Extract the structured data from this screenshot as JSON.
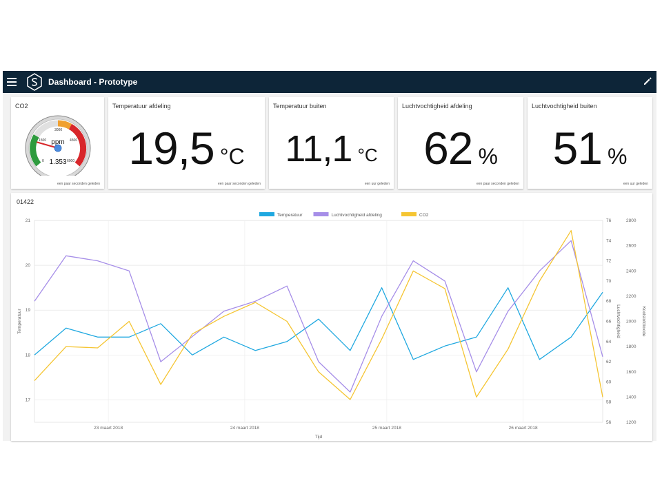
{
  "appbar": {
    "title": "Dashboard - Prototype",
    "menu_icon": "hamburger-menu-icon",
    "edit_icon": "pencil-icon",
    "logo": "s-hexagon-logo"
  },
  "cards": [
    {
      "title": "CO2",
      "gauge": {
        "unit": "ppm",
        "value_label": "1.353",
        "value": 1353,
        "min": 0,
        "max": 6000,
        "ticks": [
          "0",
          "1500",
          "3000",
          "4500",
          "6000"
        ]
      },
      "updated": "een paar seconden geleden"
    },
    {
      "title": "Temperatuur afdeling",
      "value": "19,5",
      "unit": "°C",
      "updated": "een paar seconden geleden"
    },
    {
      "title": "Temperatuur buiten",
      "value": "11,1",
      "unit": "°C",
      "updated": "een uur geleden"
    },
    {
      "title": "Luchtvochtigheid afdeling",
      "value": "62",
      "unit": "%",
      "updated": "een paar seconden geleden"
    },
    {
      "title": "Luchtvochtigheid buiten",
      "value": "51",
      "unit": "%",
      "updated": "een uur geleden"
    }
  ],
  "chart_panel": {
    "title": "01422"
  },
  "chart_data": {
    "type": "line",
    "xlabel": "Tijd",
    "x_ticks": [
      "23 maart 2018",
      "24 maart 2018",
      "25 maart 2018",
      "26 maart 2018"
    ],
    "x_range": [
      "2018-03-22 13:00",
      "2018-03-26 20:00"
    ],
    "legend_position": "top-center",
    "grid": true,
    "y_axes": [
      {
        "label": "Temperatuur",
        "side": "left",
        "range": [
          16.5,
          21
        ],
        "ticks": [
          "17",
          "18",
          "19",
          "20",
          "21"
        ]
      },
      {
        "label": "Luchtvochtigheid",
        "side": "right",
        "range": [
          56,
          76
        ],
        "ticks": [
          "56",
          "58",
          "60",
          "62",
          "64",
          "66",
          "68",
          "70",
          "72",
          "74",
          "76"
        ]
      },
      {
        "label": "Koolstofdioxide",
        "side": "right-outer",
        "range": [
          1200,
          2800
        ],
        "ticks": [
          "1200",
          "1400",
          "1600",
          "1800",
          "2000",
          "2200",
          "2400",
          "2600",
          "2800"
        ]
      }
    ],
    "x_samples": [
      "22-03 13:00",
      "22-03 18:00",
      "23-03 00:00",
      "23-03 06:00",
      "23-03 12:00",
      "23-03 18:00",
      "24-03 00:00",
      "24-03 06:00",
      "24-03 12:00",
      "24-03 18:00",
      "25-03 00:00",
      "25-03 06:00",
      "25-03 12:00",
      "25-03 18:00",
      "26-03 00:00",
      "26-03 06:00",
      "26-03 12:00",
      "26-03 18:00",
      "26-03 20:00"
    ],
    "series": [
      {
        "name": "Temperatuur",
        "axis": 0,
        "color": "#1fa8e0",
        "values": [
          18.0,
          18.6,
          18.4,
          18.4,
          18.7,
          18.0,
          18.4,
          18.1,
          18.3,
          18.8,
          18.1,
          19.5,
          17.9,
          18.2,
          18.4,
          19.5,
          17.9,
          18.4,
          19.4
        ]
      },
      {
        "name": "Luchtvochtigheid afdeling",
        "axis": 1,
        "color": "#a68ee8",
        "values": [
          68.0,
          72.5,
          72.0,
          71.0,
          62.0,
          64.5,
          67.0,
          68.0,
          69.5,
          62.0,
          59.0,
          66.5,
          72.0,
          70.0,
          61.0,
          67.0,
          71.0,
          74.0,
          62.5
        ]
      },
      {
        "name": "CO2",
        "axis": 2,
        "color": "#f5c532",
        "values": [
          1530,
          1800,
          1790,
          2000,
          1500,
          1900,
          2040,
          2150,
          2000,
          1600,
          1380,
          1860,
          2400,
          2260,
          1400,
          1780,
          2320,
          2720,
          1400
        ]
      }
    ]
  }
}
